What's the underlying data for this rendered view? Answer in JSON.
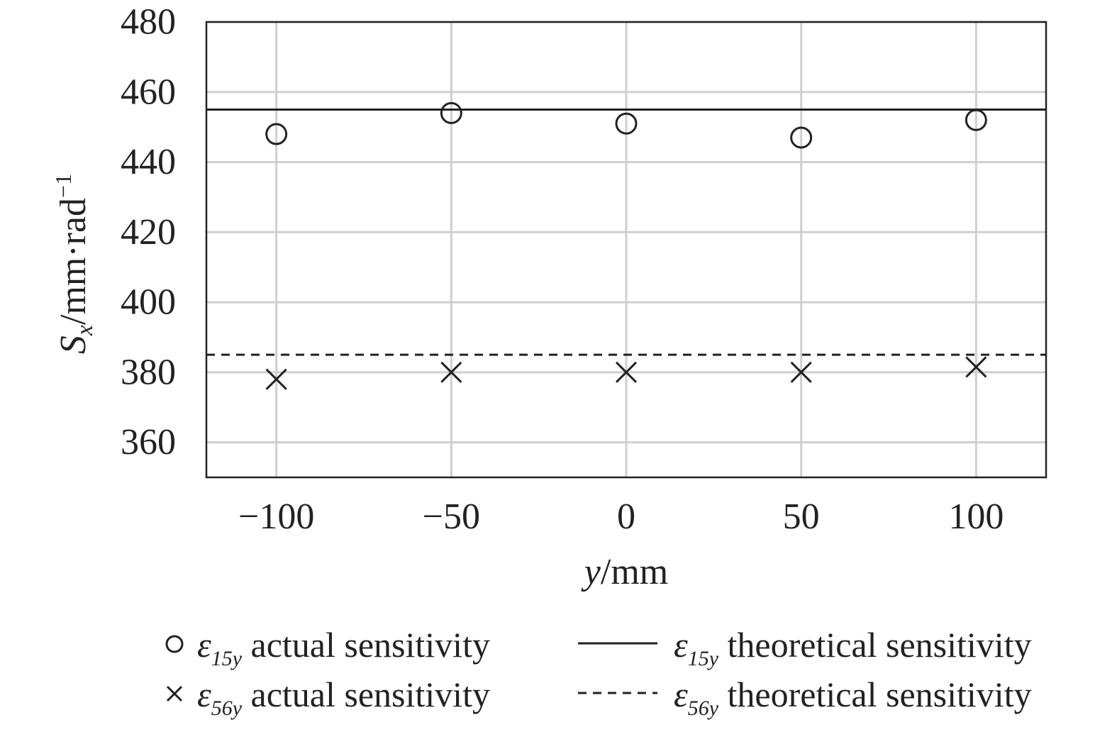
{
  "chart_data": {
    "type": "scatter",
    "title": "",
    "xlabel": "y/mm",
    "xlabel_parts": {
      "var": "y",
      "unit": "/mm"
    },
    "ylabel": "Sx/mm·rad−1",
    "ylabel_parts": {
      "var": "S",
      "sub": "x",
      "unit": "/mm·rad",
      "sup": "−1"
    },
    "xlim": [
      -120,
      120
    ],
    "ylim": [
      350,
      480
    ],
    "x_ticks": [
      -100,
      -50,
      0,
      50,
      100
    ],
    "x_tick_labels": [
      "−100",
      "−50",
      "0",
      "50",
      "100"
    ],
    "y_ticks": [
      360,
      380,
      400,
      420,
      440,
      460,
      480
    ],
    "y_tick_labels": [
      "360",
      "380",
      "400",
      "420",
      "440",
      "460",
      "480"
    ],
    "grid": true,
    "legend_position": "bottom",
    "x": [
      -100,
      -50,
      0,
      50,
      100
    ],
    "series": [
      {
        "name": "ε15y actual sensitivity",
        "symbol": "ε",
        "sub": "15y",
        "text": "actual sensitivity",
        "kind": "scatter",
        "marker": "circle",
        "values": [
          448,
          454,
          451,
          447,
          452
        ]
      },
      {
        "name": "ε56y actual sensitivity",
        "symbol": "ε",
        "sub": "56y",
        "text": "actual sensitivity",
        "kind": "scatter",
        "marker": "x",
        "values": [
          378,
          380,
          380,
          380,
          381.5
        ]
      },
      {
        "name": "ε15y theoretical sensitivity",
        "symbol": "ε",
        "sub": "15y",
        "text": "theoretical sensitivity",
        "kind": "hline",
        "style": "solid",
        "value": 455
      },
      {
        "name": "ε56y theoretical sensitivity",
        "symbol": "ε",
        "sub": "56y",
        "text": "theoretical sensitivity",
        "kind": "hline",
        "style": "dashed",
        "value": 385
      }
    ],
    "colors": {
      "axis": "#222222",
      "grid": "#cfcfcf",
      "marks": "#222222"
    }
  }
}
